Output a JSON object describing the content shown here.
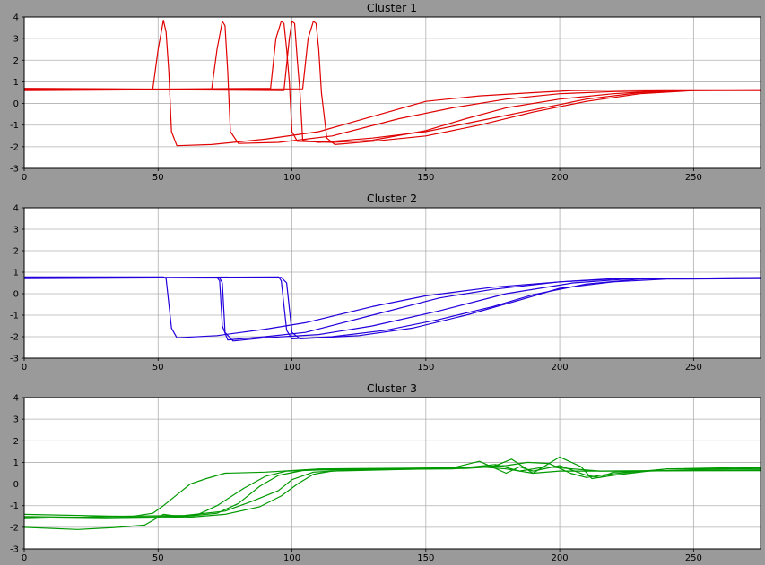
{
  "figure": {
    "background": "#9a9a9a"
  },
  "chart_data": [
    {
      "type": "line",
      "title": "Cluster 1",
      "xlim": [
        0,
        275
      ],
      "ylim": [
        -3,
        4
      ],
      "xticks": [
        0,
        50,
        100,
        150,
        200,
        250
      ],
      "yticks": [
        -3,
        -2,
        -1,
        0,
        1,
        2,
        3,
        4
      ],
      "grid": true,
      "color": "#e00000",
      "series": [
        {
          "values": [
            [
              0,
              0.65
            ],
            [
              48,
              0.65
            ],
            [
              50,
              2.5
            ],
            [
              52,
              3.85
            ],
            [
              53,
              3.3
            ],
            [
              54,
              1.5
            ],
            [
              55,
              -1.3
            ],
            [
              57,
              -1.95
            ],
            [
              70,
              -1.9
            ],
            [
              90,
              -1.65
            ],
            [
              110,
              -1.3
            ],
            [
              130,
              -0.6
            ],
            [
              150,
              0.1
            ],
            [
              170,
              0.35
            ],
            [
              190,
              0.5
            ],
            [
              205,
              0.6
            ],
            [
              220,
              0.62
            ],
            [
              240,
              0.63
            ],
            [
              275,
              0.63
            ]
          ]
        },
        {
          "values": [
            [
              0,
              0.7
            ],
            [
              70,
              0.65
            ],
            [
              72,
              2.5
            ],
            [
              74,
              3.8
            ],
            [
              75,
              3.6
            ],
            [
              76,
              1.5
            ],
            [
              77,
              -1.3
            ],
            [
              80,
              -1.85
            ],
            [
              95,
              -1.8
            ],
            [
              115,
              -1.5
            ],
            [
              140,
              -0.7
            ],
            [
              160,
              -0.2
            ],
            [
              180,
              0.2
            ],
            [
              200,
              0.45
            ],
            [
              220,
              0.55
            ],
            [
              240,
              0.6
            ],
            [
              275,
              0.62
            ]
          ]
        },
        {
          "values": [
            [
              0,
              0.62
            ],
            [
              92,
              0.7
            ],
            [
              94,
              3.0
            ],
            [
              96,
              3.8
            ],
            [
              97,
              3.7
            ],
            [
              98,
              2.5
            ],
            [
              99,
              1.0
            ],
            [
              100,
              -1.3
            ],
            [
              102,
              -1.75
            ],
            [
              115,
              -1.8
            ],
            [
              130,
              -1.7
            ],
            [
              150,
              -1.25
            ],
            [
              165,
              -0.7
            ],
            [
              180,
              -0.2
            ],
            [
              200,
              0.2
            ],
            [
              220,
              0.45
            ],
            [
              240,
              0.6
            ],
            [
              275,
              0.63
            ]
          ]
        },
        {
          "values": [
            [
              0,
              0.68
            ],
            [
              97,
              0.6
            ],
            [
              99,
              3.0
            ],
            [
              100,
              3.8
            ],
            [
              101,
              3.7
            ],
            [
              102,
              2.0
            ],
            [
              103,
              0.5
            ],
            [
              104,
              -1.7
            ],
            [
              110,
              -1.8
            ],
            [
              130,
              -1.6
            ],
            [
              150,
              -1.3
            ],
            [
              170,
              -0.8
            ],
            [
              190,
              -0.3
            ],
            [
              210,
              0.2
            ],
            [
              230,
              0.5
            ],
            [
              250,
              0.6
            ],
            [
              275,
              0.62
            ]
          ]
        },
        {
          "values": [
            [
              0,
              0.6
            ],
            [
              104,
              0.68
            ],
            [
              106,
              3.0
            ],
            [
              108,
              3.8
            ],
            [
              109,
              3.7
            ],
            [
              110,
              2.5
            ],
            [
              111,
              0.5
            ],
            [
              113,
              -1.6
            ],
            [
              116,
              -1.9
            ],
            [
              130,
              -1.75
            ],
            [
              150,
              -1.5
            ],
            [
              170,
              -1.0
            ],
            [
              190,
              -0.4
            ],
            [
              210,
              0.1
            ],
            [
              230,
              0.45
            ],
            [
              250,
              0.6
            ],
            [
              275,
              0.6
            ]
          ]
        }
      ]
    },
    {
      "type": "line",
      "title": "Cluster 2",
      "xlim": [
        0,
        275
      ],
      "ylim": [
        -3,
        4
      ],
      "xticks": [
        0,
        50,
        100,
        150,
        200,
        250
      ],
      "yticks": [
        -3,
        -2,
        -1,
        0,
        1,
        2,
        3,
        4
      ],
      "grid": true,
      "color": "#2200dd",
      "series": [
        {
          "values": [
            [
              0,
              0.78
            ],
            [
              52,
              0.78
            ],
            [
              53,
              0.7
            ],
            [
              55,
              -1.6
            ],
            [
              57,
              -2.05
            ],
            [
              72,
              -1.95
            ],
            [
              90,
              -1.65
            ],
            [
              105,
              -1.35
            ],
            [
              130,
              -0.6
            ],
            [
              150,
              -0.1
            ],
            [
              175,
              0.3
            ],
            [
              200,
              0.55
            ],
            [
              220,
              0.68
            ],
            [
              250,
              0.72
            ],
            [
              275,
              0.75
            ]
          ]
        },
        {
          "values": [
            [
              0,
              0.72
            ],
            [
              72,
              0.75
            ],
            [
              73,
              0.6
            ],
            [
              74,
              -1.5
            ],
            [
              76,
              -2.15
            ],
            [
              90,
              -2.0
            ],
            [
              105,
              -1.8
            ],
            [
              130,
              -1.0
            ],
            [
              155,
              -0.2
            ],
            [
              175,
              0.2
            ],
            [
              200,
              0.55
            ],
            [
              220,
              0.7
            ],
            [
              250,
              0.72
            ],
            [
              275,
              0.72
            ]
          ]
        },
        {
          "values": [
            [
              0,
              0.75
            ],
            [
              73,
              0.73
            ],
            [
              74,
              0.5
            ],
            [
              75,
              -1.8
            ],
            [
              78,
              -2.2
            ],
            [
              90,
              -2.05
            ],
            [
              110,
              -1.9
            ],
            [
              130,
              -1.5
            ],
            [
              155,
              -0.8
            ],
            [
              180,
              0.0
            ],
            [
              205,
              0.5
            ],
            [
              225,
              0.68
            ],
            [
              250,
              0.72
            ],
            [
              275,
              0.74
            ]
          ]
        },
        {
          "values": [
            [
              0,
              0.73
            ],
            [
              95,
              0.78
            ],
            [
              96,
              0.6
            ],
            [
              98,
              -1.7
            ],
            [
              100,
              -2.1
            ],
            [
              115,
              -2.0
            ],
            [
              135,
              -1.7
            ],
            [
              155,
              -1.2
            ],
            [
              175,
              -0.6
            ],
            [
              190,
              -0.05
            ],
            [
              210,
              0.45
            ],
            [
              230,
              0.68
            ],
            [
              250,
              0.7
            ],
            [
              275,
              0.72
            ]
          ]
        },
        {
          "values": [
            [
              0,
              0.7
            ],
            [
              96,
              0.76
            ],
            [
              98,
              0.5
            ],
            [
              100,
              -1.8
            ],
            [
              103,
              -2.1
            ],
            [
              125,
              -1.95
            ],
            [
              145,
              -1.6
            ],
            [
              165,
              -1.0
            ],
            [
              185,
              -0.3
            ],
            [
              200,
              0.25
            ],
            [
              220,
              0.55
            ],
            [
              240,
              0.68
            ],
            [
              275,
              0.7
            ]
          ]
        }
      ]
    },
    {
      "type": "line",
      "title": "Cluster 3",
      "xlim": [
        0,
        275
      ],
      "ylim": [
        -3,
        4
      ],
      "xticks": [
        0,
        50,
        100,
        150,
        200,
        250
      ],
      "yticks": [
        -3,
        -2,
        -1,
        0,
        1,
        2,
        3,
        4
      ],
      "grid": true,
      "color": "#009900",
      "series": [
        {
          "values": [
            [
              0,
              -1.4
            ],
            [
              40,
              -1.5
            ],
            [
              48,
              -1.35
            ],
            [
              52,
              -1.0
            ],
            [
              58,
              -0.4
            ],
            [
              62,
              0.0
            ],
            [
              68,
              0.25
            ],
            [
              75,
              0.5
            ],
            [
              90,
              0.55
            ],
            [
              110,
              0.7
            ],
            [
              160,
              0.75
            ],
            [
              170,
              0.8
            ],
            [
              180,
              0.7
            ],
            [
              190,
              0.5
            ],
            [
              200,
              0.6
            ],
            [
              210,
              0.6
            ],
            [
              275,
              0.62
            ]
          ]
        },
        {
          "values": [
            [
              0,
              -2.0
            ],
            [
              20,
              -2.1
            ],
            [
              35,
              -2.0
            ],
            [
              45,
              -1.9
            ],
            [
              52,
              -1.4
            ],
            [
              58,
              -1.5
            ],
            [
              65,
              -1.4
            ],
            [
              72,
              -1.0
            ],
            [
              82,
              -0.2
            ],
            [
              90,
              0.35
            ],
            [
              98,
              0.6
            ],
            [
              110,
              0.65
            ],
            [
              160,
              0.7
            ],
            [
              176,
              0.9
            ],
            [
              185,
              0.6
            ],
            [
              195,
              0.8
            ],
            [
              205,
              0.7
            ],
            [
              215,
              0.6
            ],
            [
              275,
              0.65
            ]
          ]
        },
        {
          "values": [
            [
              0,
              -1.5
            ],
            [
              30,
              -1.55
            ],
            [
              60,
              -1.5
            ],
            [
              72,
              -1.35
            ],
            [
              80,
              -0.9
            ],
            [
              88,
              -0.1
            ],
            [
              95,
              0.4
            ],
            [
              105,
              0.65
            ],
            [
              130,
              0.7
            ],
            [
              160,
              0.75
            ],
            [
              170,
              1.05
            ],
            [
              180,
              0.5
            ],
            [
              185,
              0.8
            ],
            [
              190,
              0.6
            ],
            [
              200,
              0.85
            ],
            [
              210,
              0.4
            ],
            [
              215,
              0.3
            ],
            [
              220,
              0.55
            ],
            [
              275,
              0.75
            ]
          ]
        },
        {
          "values": [
            [
              0,
              -1.6
            ],
            [
              30,
              -1.5
            ],
            [
              60,
              -1.45
            ],
            [
              75,
              -1.25
            ],
            [
              85,
              -0.8
            ],
            [
              95,
              -0.3
            ],
            [
              100,
              0.2
            ],
            [
              108,
              0.55
            ],
            [
              130,
              0.7
            ],
            [
              165,
              0.72
            ],
            [
              175,
              0.8
            ],
            [
              182,
              1.15
            ],
            [
              190,
              0.5
            ],
            [
              200,
              1.25
            ],
            [
              208,
              0.8
            ],
            [
              212,
              0.25
            ],
            [
              220,
              0.4
            ],
            [
              240,
              0.7
            ],
            [
              275,
              0.7
            ]
          ]
        },
        {
          "values": [
            [
              0,
              -1.55
            ],
            [
              30,
              -1.6
            ],
            [
              60,
              -1.55
            ],
            [
              75,
              -1.4
            ],
            [
              88,
              -1.05
            ],
            [
              96,
              -0.55
            ],
            [
              102,
              0.0
            ],
            [
              108,
              0.45
            ],
            [
              115,
              0.6
            ],
            [
              150,
              0.7
            ],
            [
              180,
              0.85
            ],
            [
              188,
              1.0
            ],
            [
              196,
              0.95
            ],
            [
              204,
              0.5
            ],
            [
              210,
              0.3
            ],
            [
              218,
              0.45
            ],
            [
              240,
              0.7
            ],
            [
              275,
              0.78
            ]
          ]
        }
      ]
    }
  ]
}
